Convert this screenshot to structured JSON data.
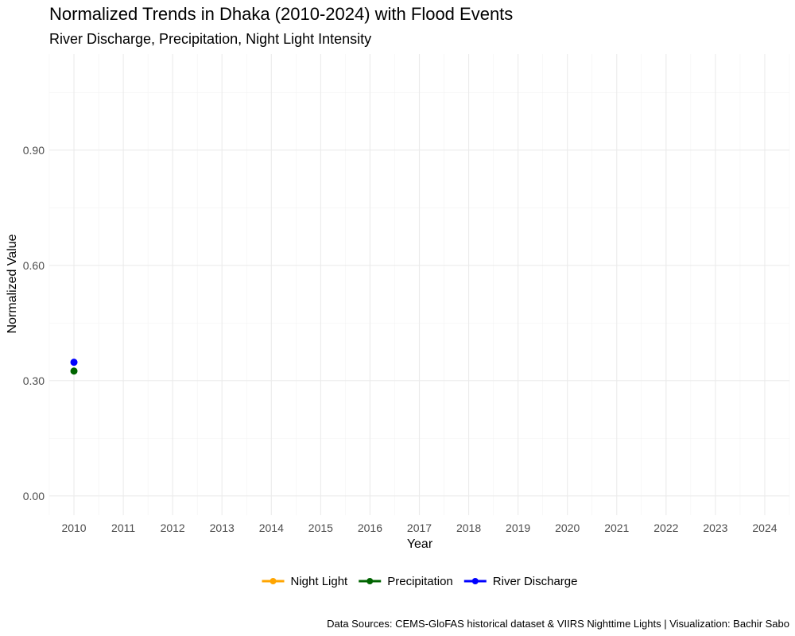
{
  "chart_data": {
    "type": "line",
    "title": "Normalized Trends in Dhaka (2010-2024) with Flood Events",
    "subtitle": "River Discharge, Precipitation, Night Light Intensity",
    "xlabel": "Year",
    "ylabel": "Normalized Value",
    "caption": "Data Sources: CEMS-GloFAS historical dataset & VIIRS Nighttime Lights | Visualization: Bachir Sabo",
    "x": [
      2010,
      2011,
      2012,
      2013,
      2014,
      2015,
      2016,
      2017,
      2018,
      2019,
      2020,
      2021,
      2022,
      2023,
      2024
    ],
    "x_tick_labels": [
      "2010",
      "2011",
      "2012",
      "2013",
      "2014",
      "2015",
      "2016",
      "2017",
      "2018",
      "2019",
      "2020",
      "2021",
      "2022",
      "2023",
      "2024"
    ],
    "y_ticks": [
      0.0,
      0.3,
      0.6,
      0.9
    ],
    "y_tick_labels": [
      "0.00",
      "0.30",
      "0.60",
      "0.90"
    ],
    "ylim": [
      -0.05,
      1.15
    ],
    "grid": true,
    "legend_position": "bottom",
    "series": [
      {
        "name": "Night Light",
        "color": "#FFA500",
        "values": [
          null,
          null,
          null,
          null,
          null,
          null,
          null,
          null,
          null,
          null,
          null,
          null,
          null,
          null,
          null
        ]
      },
      {
        "name": "Precipitation",
        "color": "#006400",
        "values": [
          0.325,
          null,
          null,
          null,
          null,
          null,
          null,
          null,
          null,
          null,
          null,
          null,
          null,
          null,
          null
        ]
      },
      {
        "name": "River Discharge",
        "color": "#0000FF",
        "values": [
          0.348,
          null,
          null,
          null,
          null,
          null,
          null,
          null,
          null,
          null,
          null,
          null,
          null,
          null,
          null
        ]
      }
    ]
  }
}
